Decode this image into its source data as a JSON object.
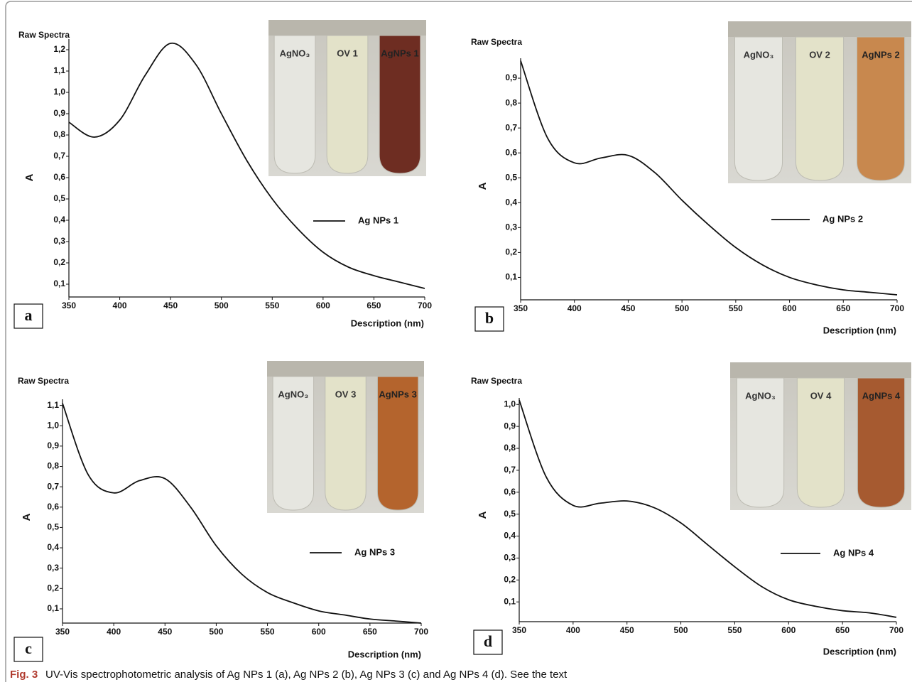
{
  "chart_data": [
    {
      "type": "line",
      "panel": "a",
      "title": "Raw Spectra",
      "y_label": "A",
      "x_label": "Description (nm)",
      "photo_labels": [
        "AgNO₃",
        "OV 1",
        "AgNPs 1"
      ],
      "x": [
        350,
        375,
        400,
        425,
        450,
        475,
        500,
        525,
        550,
        575,
        600,
        625,
        650,
        675,
        700
      ],
      "series": [
        {
          "name": "Ag NPs 1",
          "color": "#111111",
          "values": [
            0.86,
            0.79,
            0.87,
            1.08,
            1.23,
            1.13,
            0.9,
            0.68,
            0.5,
            0.36,
            0.25,
            0.18,
            0.14,
            0.11,
            0.08
          ]
        }
      ],
      "xlim": [
        350,
        700
      ],
      "ylim": [
        0.04,
        1.25
      ],
      "xticks": [
        350,
        400,
        450,
        500,
        550,
        600,
        650,
        700
      ],
      "yticks": [
        {
          "value": 0.1,
          "label": "0,1"
        },
        {
          "value": 0.2,
          "label": "0,2"
        },
        {
          "value": 0.3,
          "label": "0,3"
        },
        {
          "value": 0.4,
          "label": "0,4"
        },
        {
          "value": 0.5,
          "label": "0,5"
        },
        {
          "value": 0.6,
          "label": "0,6"
        },
        {
          "value": 0.7,
          "label": "0,7"
        },
        {
          "value": 0.8,
          "label": "0,8"
        },
        {
          "value": 0.9,
          "label": "0,9"
        },
        {
          "value": 1.0,
          "label": "1,0"
        },
        {
          "value": 1.1,
          "label": "1,1"
        },
        {
          "value": 1.2,
          "label": "1,2"
        }
      ]
    },
    {
      "type": "line",
      "panel": "b",
      "title": "Raw Spectra",
      "y_label": "A",
      "x_label": "Description (nm)",
      "photo_labels": [
        "AgNO₃",
        "OV 2",
        "AgNPs 2"
      ],
      "x": [
        350,
        375,
        400,
        425,
        450,
        475,
        500,
        525,
        550,
        575,
        600,
        625,
        650,
        675,
        700
      ],
      "series": [
        {
          "name": "Ag NPs 2",
          "color": "#111111",
          "values": [
            0.97,
            0.66,
            0.56,
            0.58,
            0.59,
            0.52,
            0.41,
            0.31,
            0.22,
            0.15,
            0.1,
            0.07,
            0.05,
            0.04,
            0.03
          ]
        }
      ],
      "xlim": [
        350,
        700
      ],
      "ylim": [
        0.01,
        0.98
      ],
      "xticks": [
        350,
        400,
        450,
        500,
        550,
        600,
        650,
        700
      ],
      "yticks": [
        {
          "value": 0.1,
          "label": "0,1"
        },
        {
          "value": 0.2,
          "label": "0,2"
        },
        {
          "value": 0.3,
          "label": "0,3"
        },
        {
          "value": 0.4,
          "label": "0,4"
        },
        {
          "value": 0.5,
          "label": "0,5"
        },
        {
          "value": 0.6,
          "label": "0,6"
        },
        {
          "value": 0.7,
          "label": "0,7"
        },
        {
          "value": 0.8,
          "label": "0,8"
        },
        {
          "value": 0.9,
          "label": "0,9"
        }
      ]
    },
    {
      "type": "line",
      "panel": "c",
      "title": "Raw Spectra",
      "y_label": "A",
      "x_label": "Description (nm)",
      "photo_labels": [
        "AgNO₃",
        "OV 3",
        "AgNPs 3"
      ],
      "x": [
        350,
        375,
        400,
        425,
        450,
        475,
        500,
        525,
        550,
        575,
        600,
        625,
        650,
        675,
        700
      ],
      "series": [
        {
          "name": "Ag NPs 3",
          "color": "#111111",
          "values": [
            1.11,
            0.76,
            0.67,
            0.73,
            0.74,
            0.6,
            0.41,
            0.27,
            0.18,
            0.13,
            0.09,
            0.07,
            0.05,
            0.04,
            0.03
          ]
        }
      ],
      "xlim": [
        350,
        700
      ],
      "ylim": [
        0.03,
        1.13
      ],
      "xticks": [
        350,
        400,
        450,
        500,
        550,
        600,
        650,
        700
      ],
      "yticks": [
        {
          "value": 0.1,
          "label": "0,1"
        },
        {
          "value": 0.2,
          "label": "0,2"
        },
        {
          "value": 0.3,
          "label": "0,3"
        },
        {
          "value": 0.4,
          "label": "0,4"
        },
        {
          "value": 0.5,
          "label": "0,5"
        },
        {
          "value": 0.6,
          "label": "0,6"
        },
        {
          "value": 0.7,
          "label": "0,7"
        },
        {
          "value": 0.8,
          "label": "0,8"
        },
        {
          "value": 0.9,
          "label": "0,9"
        },
        {
          "value": 1.0,
          "label": "1,0"
        },
        {
          "value": 1.1,
          "label": "1,1"
        }
      ]
    },
    {
      "type": "line",
      "panel": "d",
      "title": "Raw Spectra",
      "y_label": "A",
      "x_label": "Description (nm)",
      "photo_labels": [
        "AgNO₃",
        "OV 4",
        "AgNPs 4"
      ],
      "x": [
        350,
        375,
        400,
        425,
        450,
        475,
        500,
        525,
        550,
        575,
        600,
        625,
        650,
        675,
        700
      ],
      "series": [
        {
          "name": "Ag NPs 4",
          "color": "#111111",
          "values": [
            1.02,
            0.67,
            0.54,
            0.55,
            0.56,
            0.53,
            0.46,
            0.36,
            0.26,
            0.17,
            0.11,
            0.08,
            0.06,
            0.05,
            0.03
          ]
        }
      ],
      "xlim": [
        350,
        700
      ],
      "ylim": [
        0.01,
        1.03
      ],
      "xticks": [
        350,
        400,
        450,
        500,
        550,
        600,
        650,
        700
      ],
      "yticks": [
        {
          "value": 0.1,
          "label": "0,1"
        },
        {
          "value": 0.2,
          "label": "0,2"
        },
        {
          "value": 0.3,
          "label": "0,3"
        },
        {
          "value": 0.4,
          "label": "0,4"
        },
        {
          "value": 0.5,
          "label": "0,5"
        },
        {
          "value": 0.6,
          "label": "0,6"
        },
        {
          "value": 0.7,
          "label": "0,7"
        },
        {
          "value": 0.8,
          "label": "0,8"
        },
        {
          "value": 0.9,
          "label": "0,9"
        },
        {
          "value": 1.0,
          "label": "1,0"
        }
      ]
    }
  ],
  "caption": {
    "label": "Fig. 3",
    "text": "UV-Vis spectrophotometric analysis of Ag NPs 1 (a), Ag NPs 2 (b), Ag NPs 3 (c) and Ag NPs 4 (d). See the text"
  }
}
